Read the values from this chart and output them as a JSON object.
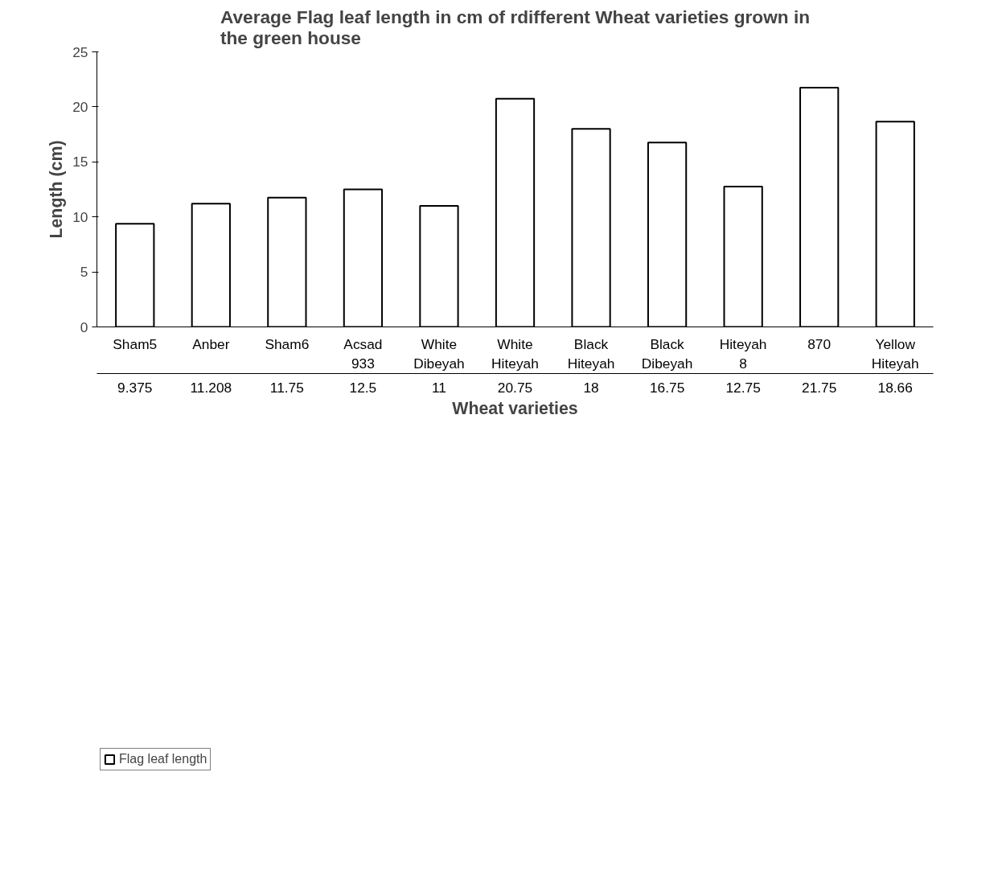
{
  "chart_data": {
    "type": "bar",
    "title": "Average Flag leaf length in cm of rdifferent Wheat varieties grown in the green house",
    "xlabel": "Wheat varieties",
    "ylabel": "Length (cm)",
    "categories": [
      "Sham5",
      "Anber",
      "Sham6",
      "Acsad 933",
      "White Dibeyah",
      "White Hiteyah",
      "Black Hiteyah",
      "Black Dibeyah",
      "Hiteyah 8",
      "870",
      "Yellow Hiteyah"
    ],
    "series": [
      {
        "name": "Flag leaf length",
        "color": "#ffffff",
        "values": [
          9.375,
          11.208,
          11.75,
          12.5,
          11,
          20.75,
          18,
          16.75,
          12.75,
          21.75,
          18.66
        ]
      }
    ],
    "ylim": [
      0,
      25
    ],
    "yticks": [
      0,
      5,
      10,
      15,
      20,
      25
    ],
    "grid": false,
    "legend": "bottom",
    "data_labels": true
  }
}
